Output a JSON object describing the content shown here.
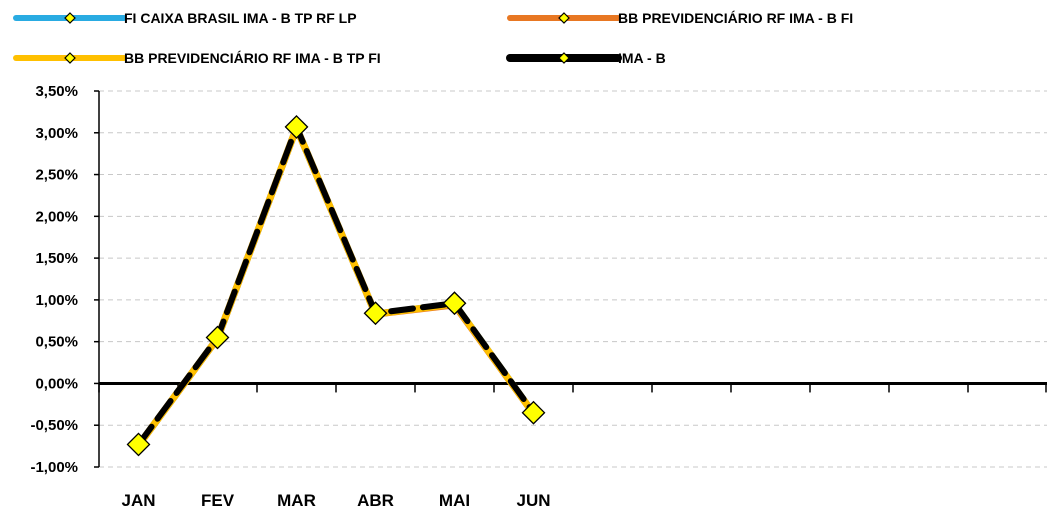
{
  "chart_data": {
    "type": "line",
    "categories": [
      "JAN",
      "FEV",
      "MAR",
      "ABR",
      "MAI",
      "JUN"
    ],
    "series": [
      {
        "name": "FI CAIXA BRASIL IMA - B TP RF LP",
        "color": "#29abe2",
        "values": [
          -0.74,
          0.54,
          3.06,
          0.83,
          0.95,
          -0.36
        ]
      },
      {
        "name": "BB PREVIDENCIÁRIO RF IMA - B FI",
        "color": "#e87722",
        "values": [
          -0.74,
          0.54,
          3.06,
          0.83,
          0.94,
          -0.36
        ]
      },
      {
        "name": "BB PREVIDENCIÁRIO RF IMA - B TP FI",
        "color": "#ffc000",
        "values": [
          -0.74,
          0.54,
          3.06,
          0.83,
          0.95,
          -0.36
        ]
      },
      {
        "name": "IMA - B",
        "color": "#000000",
        "values": [
          -0.73,
          0.55,
          3.07,
          0.84,
          0.96,
          -0.35
        ]
      }
    ],
    "x_slots": 12,
    "ylim": [
      -1.0,
      3.5
    ],
    "yticks": [
      "-1,00%",
      "-0,50%",
      "0,00%",
      "0,50%",
      "1,00%",
      "1,50%",
      "2,00%",
      "2,50%",
      "3,00%",
      "3,50%"
    ],
    "ytick_values": [
      -1.0,
      -0.5,
      0.0,
      0.5,
      1.0,
      1.5,
      2.0,
      2.5,
      3.0,
      3.5
    ],
    "grid": true,
    "legend_position": "top",
    "marker_fill": "#ffff00"
  }
}
